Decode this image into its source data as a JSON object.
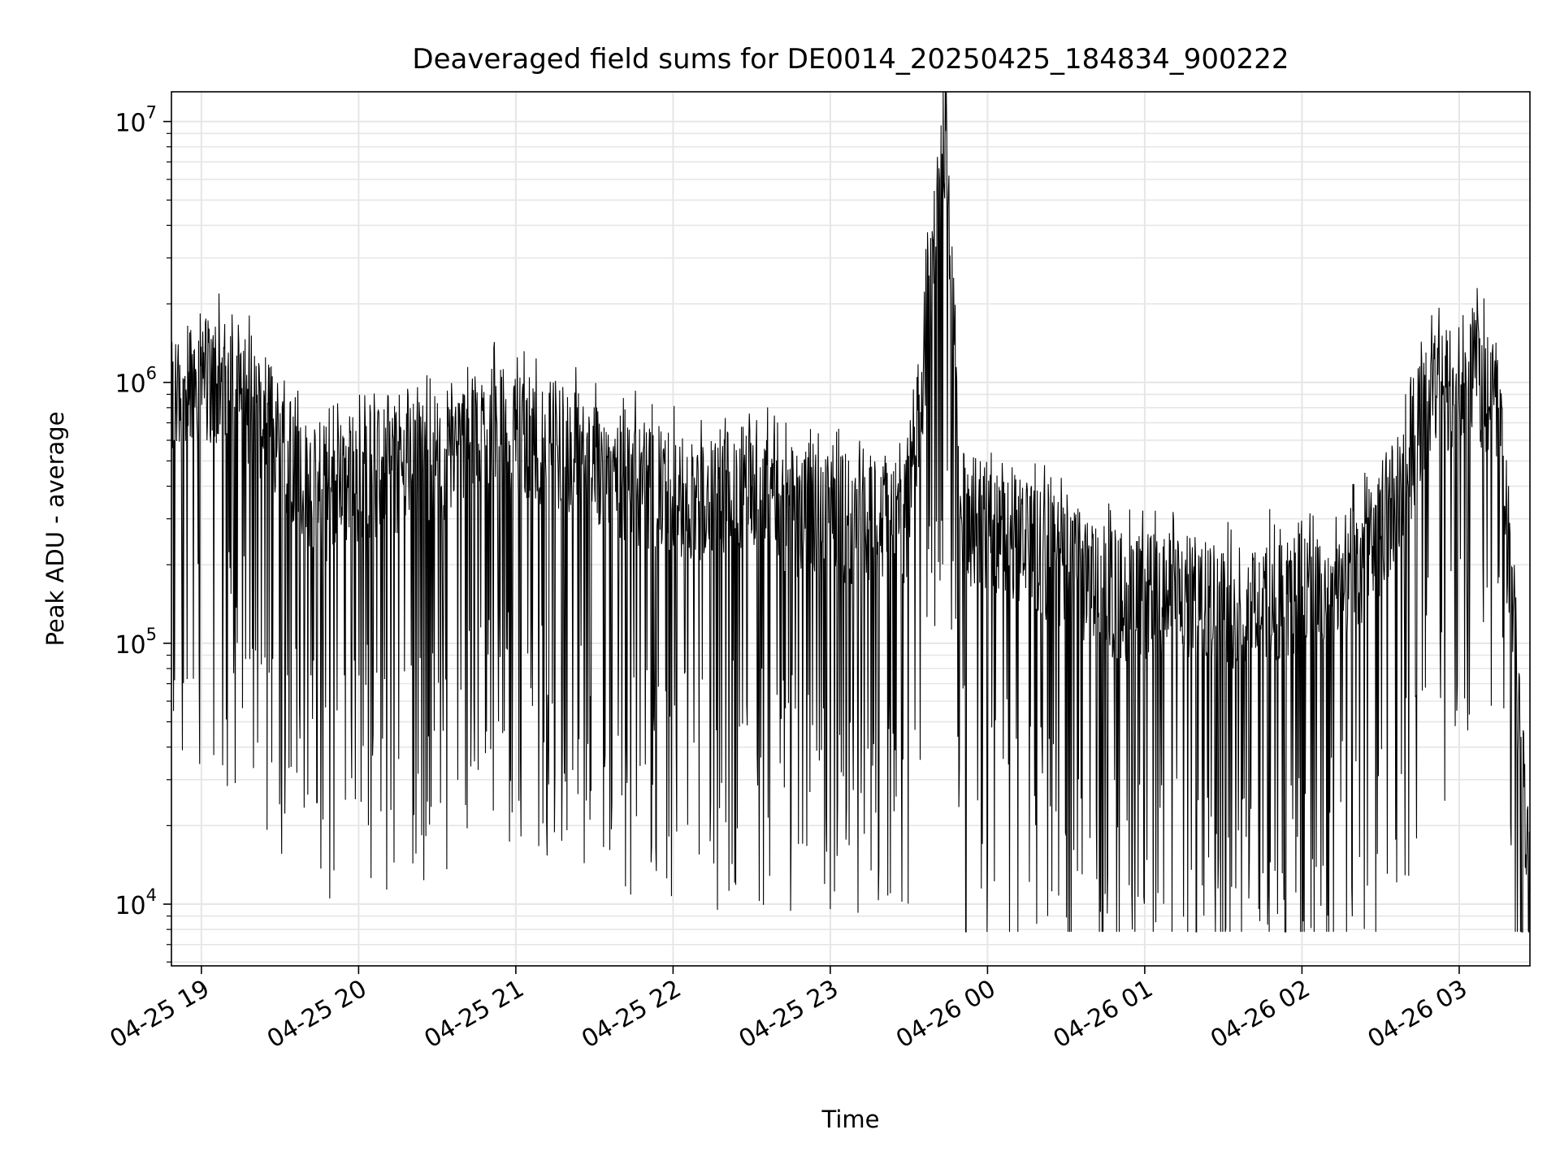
{
  "chart_data": {
    "type": "line",
    "title": "Deaveraged field sums for DE0014_20250425_184834_900222",
    "xlabel": "Time",
    "ylabel": "Peak ADU - average",
    "x_type": "datetime",
    "xlim": [
      "2025-04-25T18:48:34",
      "2025-04-26T03:27:00"
    ],
    "x_ticks": [
      "2025-04-25T19:00",
      "2025-04-25T20:00",
      "2025-04-25T21:00",
      "2025-04-25T22:00",
      "2025-04-25T23:00",
      "2025-04-26T00:00",
      "2025-04-26T01:00",
      "2025-04-26T02:00",
      "2025-04-26T03:00"
    ],
    "x_tick_labels": [
      "04-25 19",
      "04-25 20",
      "04-25 21",
      "04-25 22",
      "04-25 23",
      "04-26 00",
      "04-26 01",
      "04-26 02",
      "04-26 03"
    ],
    "y_scale": "log",
    "ylim": [
      5800,
      13000000
    ],
    "y_ticks": [
      10000,
      100000,
      1000000,
      10000000
    ],
    "y_tick_labels": [
      {
        "base": "10",
        "exp": "4"
      },
      {
        "base": "10",
        "exp": "5"
      },
      {
        "base": "10",
        "exp": "6"
      },
      {
        "base": "10",
        "exp": "7"
      }
    ],
    "grid": true,
    "minor_grid": true,
    "legend": "none",
    "line_color": "#000000",
    "grid_color": "#e6e6e6",
    "series": [
      {
        "x": [
          "2025-04-25T18:48:34",
          "2025-04-25T18:55",
          "2025-04-25T19:05",
          "2025-04-25T19:15",
          "2025-04-25T19:25",
          "2025-04-25T19:35",
          "2025-04-25T19:45",
          "2025-04-25T19:55",
          "2025-04-25T20:10",
          "2025-04-25T20:30",
          "2025-04-25T20:50",
          "2025-04-25T21:10",
          "2025-04-25T21:30",
          "2025-04-25T21:50",
          "2025-04-25T22:10",
          "2025-04-25T22:30",
          "2025-04-25T22:50",
          "2025-04-25T23:10",
          "2025-04-25T23:30",
          "2025-04-25T23:44",
          "2025-04-25T23:50",
          "2025-04-26T00:10",
          "2025-04-26T00:30",
          "2025-04-26T00:50",
          "2025-04-26T01:10",
          "2025-04-26T01:30",
          "2025-04-26T01:50",
          "2025-04-26T02:10",
          "2025-04-26T02:30",
          "2025-04-26T02:50",
          "2025-04-26T03:05",
          "2025-04-26T03:15",
          "2025-04-26T03:27"
        ],
        "y": [
          800000,
          1100000,
          1000000,
          900000,
          700000,
          500000,
          350000,
          400000,
          450000,
          500000,
          650000,
          600000,
          500000,
          400000,
          350000,
          400000,
          300000,
          300000,
          300000,
          9200000,
          300000,
          250000,
          200000,
          150000,
          150000,
          140000,
          150000,
          150000,
          250000,
          900000,
          1100000,
          800000,
          11000
        ]
      }
    ]
  }
}
